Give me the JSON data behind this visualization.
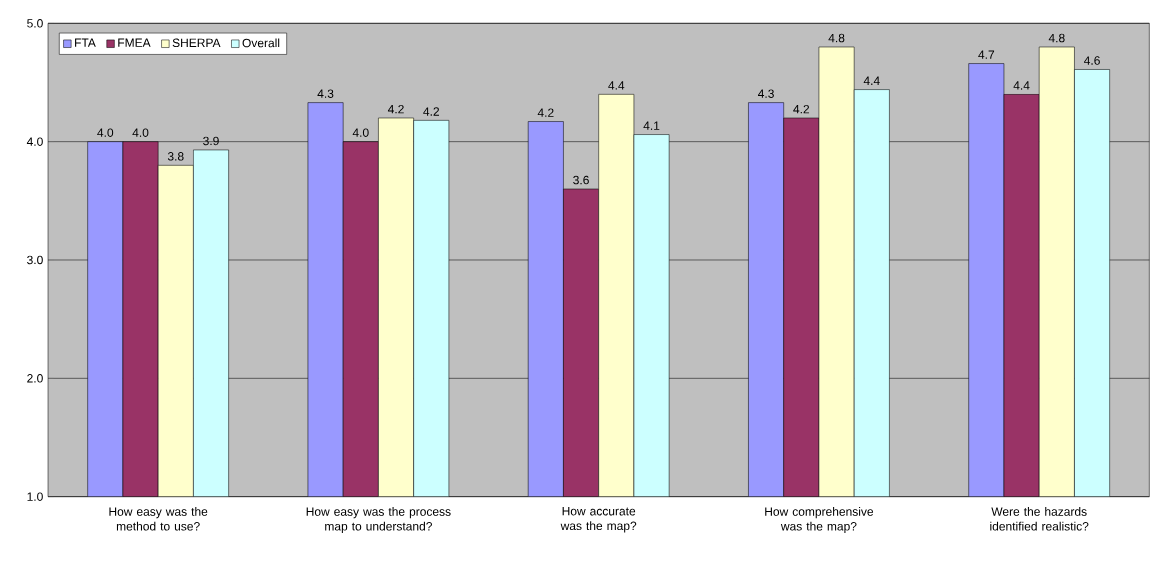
{
  "chart_data": {
    "type": "bar",
    "categories": [
      "How easy was the method to use?",
      "How easy was the process map to understand?",
      "How accurate was the map?",
      "How comprehensive was the map?",
      "Were the hazards identified realistic?"
    ],
    "series": [
      {
        "name": "FTA",
        "color": "#9999ff",
        "values": [
          4.0,
          4.33,
          4.17,
          4.33,
          4.66
        ],
        "value_labels": [
          "4.0",
          "4.3",
          "4.2",
          "4.3",
          "4.7"
        ]
      },
      {
        "name": "FMEA",
        "color": "#993366",
        "values": [
          4.0,
          4.0,
          3.6,
          4.2,
          4.4
        ],
        "value_labels": [
          "4.0",
          "4.0",
          "3.6",
          "4.2",
          "4.4"
        ]
      },
      {
        "name": "SHERPA",
        "color": "#ffffcc",
        "values": [
          3.8,
          4.2,
          4.4,
          4.8,
          4.8
        ],
        "value_labels": [
          "3.8",
          "4.2",
          "4.4",
          "4.8",
          "4.8"
        ]
      },
      {
        "name": "Overall",
        "color": "#ccffff",
        "values": [
          3.93,
          4.18,
          4.06,
          4.44,
          4.61
        ],
        "value_labels": [
          "3.9",
          "4.2",
          "4.1",
          "4.4",
          "4.6"
        ]
      }
    ],
    "ylim": [
      1,
      5
    ],
    "yticks": [
      {
        "value": 1,
        "label": "1.0"
      },
      {
        "value": 2,
        "label": "2.0"
      },
      {
        "value": 3,
        "label": "3.0"
      },
      {
        "value": 4,
        "label": "4.0"
      },
      {
        "value": 5,
        "label": "5.0"
      }
    ],
    "grid": "y",
    "legend": "top left"
  }
}
